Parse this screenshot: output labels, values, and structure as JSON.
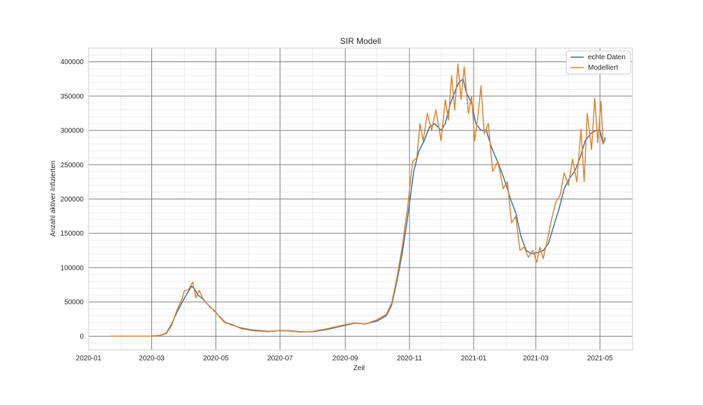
{
  "chart_data": {
    "type": "line",
    "title": "SIR Modell",
    "xlabel": "Zeit",
    "ylabel": "Anzahl aktiver Infizierten",
    "x_axis_type": "date",
    "xlim": [
      "2020-01-01",
      "2021-06-01"
    ],
    "ylim": [
      -20000,
      420000
    ],
    "x_ticks": [
      "2020-01",
      "2020-03",
      "2020-05",
      "2020-07",
      "2020-09",
      "2020-11",
      "2021-01",
      "2021-03",
      "2021-05"
    ],
    "y_ticks": [
      0,
      50000,
      100000,
      150000,
      200000,
      250000,
      300000,
      350000,
      400000
    ],
    "grid": true,
    "minor_grid": true,
    "legend_position": "top-right",
    "colors": {
      "echte_daten": "#3274a1",
      "modelliert": "#e1812c",
      "major_grid": "#808080",
      "minor_grid": "#e6e6e6"
    },
    "series": [
      {
        "name": "echte Daten",
        "points": [
          [
            "2020-01-22",
            0
          ],
          [
            "2020-02-15",
            0
          ],
          [
            "2020-03-01",
            0
          ],
          [
            "2020-03-10",
            1500
          ],
          [
            "2020-03-15",
            5000
          ],
          [
            "2020-03-20",
            18000
          ],
          [
            "2020-03-25",
            35000
          ],
          [
            "2020-03-30",
            50000
          ],
          [
            "2020-04-04",
            63000
          ],
          [
            "2020-04-08",
            73000
          ],
          [
            "2020-04-11",
            68000
          ],
          [
            "2020-04-14",
            60000
          ],
          [
            "2020-04-18",
            55000
          ],
          [
            "2020-04-24",
            45000
          ],
          [
            "2020-04-30",
            36000
          ],
          [
            "2020-05-05",
            28000
          ],
          [
            "2020-05-10",
            20000
          ],
          [
            "2020-05-15",
            17000
          ],
          [
            "2020-05-25",
            12000
          ],
          [
            "2020-06-05",
            9000
          ],
          [
            "2020-06-20",
            7000
          ],
          [
            "2020-07-01",
            8000
          ],
          [
            "2020-07-10",
            8000
          ],
          [
            "2020-07-20",
            6500
          ],
          [
            "2020-08-01",
            6500
          ],
          [
            "2020-08-15",
            10000
          ],
          [
            "2020-09-01",
            16000
          ],
          [
            "2020-09-10",
            19000
          ],
          [
            "2020-09-20",
            18000
          ],
          [
            "2020-10-01",
            22000
          ],
          [
            "2020-10-10",
            30000
          ],
          [
            "2020-10-15",
            45000
          ],
          [
            "2020-10-20",
            80000
          ],
          [
            "2020-10-25",
            120000
          ],
          [
            "2020-10-30",
            170000
          ],
          [
            "2020-11-05",
            240000
          ],
          [
            "2020-11-10",
            270000
          ],
          [
            "2020-11-15",
            285000
          ],
          [
            "2020-11-20",
            305000
          ],
          [
            "2020-11-25",
            310000
          ],
          [
            "2020-12-01",
            300000
          ],
          [
            "2020-12-05",
            310000
          ],
          [
            "2020-12-10",
            340000
          ],
          [
            "2020-12-15",
            360000
          ],
          [
            "2020-12-18",
            370000
          ],
          [
            "2020-12-22",
            375000
          ],
          [
            "2020-12-25",
            355000
          ],
          [
            "2020-12-30",
            340000
          ],
          [
            "2021-01-03",
            310000
          ],
          [
            "2021-01-08",
            300000
          ],
          [
            "2021-01-13",
            300000
          ],
          [
            "2021-01-18",
            275000
          ],
          [
            "2021-01-25",
            250000
          ],
          [
            "2021-02-01",
            220000
          ],
          [
            "2021-02-05",
            200000
          ],
          [
            "2021-02-10",
            180000
          ],
          [
            "2021-02-15",
            145000
          ],
          [
            "2021-02-20",
            125000
          ],
          [
            "2021-02-25",
            120000
          ],
          [
            "2021-03-03",
            122000
          ],
          [
            "2021-03-08",
            125000
          ],
          [
            "2021-03-13",
            135000
          ],
          [
            "2021-03-18",
            160000
          ],
          [
            "2021-03-23",
            185000
          ],
          [
            "2021-03-28",
            215000
          ],
          [
            "2021-04-02",
            230000
          ],
          [
            "2021-04-07",
            240000
          ],
          [
            "2021-04-12",
            260000
          ],
          [
            "2021-04-17",
            285000
          ],
          [
            "2021-04-22",
            295000
          ],
          [
            "2021-04-27",
            300000
          ],
          [
            "2021-05-01",
            300000
          ],
          [
            "2021-05-04",
            280000
          ],
          [
            "2021-05-06",
            290000
          ]
        ]
      },
      {
        "name": "Modelliert",
        "points": [
          [
            "2020-01-22",
            0
          ],
          [
            "2020-02-15",
            0
          ],
          [
            "2020-03-01",
            0
          ],
          [
            "2020-03-10",
            1200
          ],
          [
            "2020-03-15",
            4000
          ],
          [
            "2020-03-20",
            16000
          ],
          [
            "2020-03-25",
            38000
          ],
          [
            "2020-03-30",
            55000
          ],
          [
            "2020-04-01",
            66000
          ],
          [
            "2020-04-05",
            68000
          ],
          [
            "2020-04-09",
            79000
          ],
          [
            "2020-04-12",
            56000
          ],
          [
            "2020-04-15",
            67000
          ],
          [
            "2020-04-19",
            54000
          ],
          [
            "2020-04-25",
            43000
          ],
          [
            "2020-04-30",
            37000
          ],
          [
            "2020-05-05",
            27000
          ],
          [
            "2020-05-10",
            19000
          ],
          [
            "2020-05-15",
            18000
          ],
          [
            "2020-05-25",
            11000
          ],
          [
            "2020-06-05",
            8000
          ],
          [
            "2020-06-20",
            6500
          ],
          [
            "2020-07-01",
            8000
          ],
          [
            "2020-07-10",
            7500
          ],
          [
            "2020-07-20",
            6000
          ],
          [
            "2020-08-01",
            7000
          ],
          [
            "2020-08-15",
            11000
          ],
          [
            "2020-09-01",
            17000
          ],
          [
            "2020-09-10",
            19500
          ],
          [
            "2020-09-20",
            17500
          ],
          [
            "2020-10-01",
            24000
          ],
          [
            "2020-10-10",
            32000
          ],
          [
            "2020-10-15",
            48000
          ],
          [
            "2020-10-20",
            85000
          ],
          [
            "2020-10-25",
            130000
          ],
          [
            "2020-10-30",
            185000
          ],
          [
            "2020-11-04",
            255000
          ],
          [
            "2020-11-08",
            260000
          ],
          [
            "2020-11-11",
            310000
          ],
          [
            "2020-11-14",
            285000
          ],
          [
            "2020-11-18",
            325000
          ],
          [
            "2020-11-22",
            300000
          ],
          [
            "2020-11-26",
            330000
          ],
          [
            "2020-12-01",
            285000
          ],
          [
            "2020-12-05",
            345000
          ],
          [
            "2020-12-08",
            315000
          ],
          [
            "2020-12-11",
            380000
          ],
          [
            "2020-12-14",
            330000
          ],
          [
            "2020-12-17",
            397000
          ],
          [
            "2020-12-20",
            345000
          ],
          [
            "2020-12-23",
            393000
          ],
          [
            "2020-12-27",
            325000
          ],
          [
            "2020-12-30",
            350000
          ],
          [
            "2021-01-02",
            285000
          ],
          [
            "2021-01-05",
            320000
          ],
          [
            "2021-01-08",
            365000
          ],
          [
            "2021-01-11",
            295000
          ],
          [
            "2021-01-15",
            310000
          ],
          [
            "2021-01-19",
            240000
          ],
          [
            "2021-01-24",
            255000
          ],
          [
            "2021-01-29",
            215000
          ],
          [
            "2021-02-02",
            225000
          ],
          [
            "2021-02-06",
            165000
          ],
          [
            "2021-02-10",
            175000
          ],
          [
            "2021-02-14",
            125000
          ],
          [
            "2021-02-18",
            130000
          ],
          [
            "2021-02-22",
            115000
          ],
          [
            "2021-02-26",
            125000
          ],
          [
            "2021-03-02",
            108000
          ],
          [
            "2021-03-05",
            130000
          ],
          [
            "2021-03-08",
            113000
          ],
          [
            "2021-03-12",
            140000
          ],
          [
            "2021-03-16",
            170000
          ],
          [
            "2021-03-20",
            195000
          ],
          [
            "2021-03-24",
            205000
          ],
          [
            "2021-03-28",
            238000
          ],
          [
            "2021-04-01",
            220000
          ],
          [
            "2021-04-05",
            258000
          ],
          [
            "2021-04-09",
            225000
          ],
          [
            "2021-04-13",
            302000
          ],
          [
            "2021-04-16",
            225000
          ],
          [
            "2021-04-19",
            325000
          ],
          [
            "2021-04-23",
            272000
          ],
          [
            "2021-04-26",
            347000
          ],
          [
            "2021-04-29",
            282000
          ],
          [
            "2021-05-02",
            342000
          ],
          [
            "2021-05-04",
            280000
          ],
          [
            "2021-05-06",
            287000
          ]
        ]
      }
    ]
  }
}
